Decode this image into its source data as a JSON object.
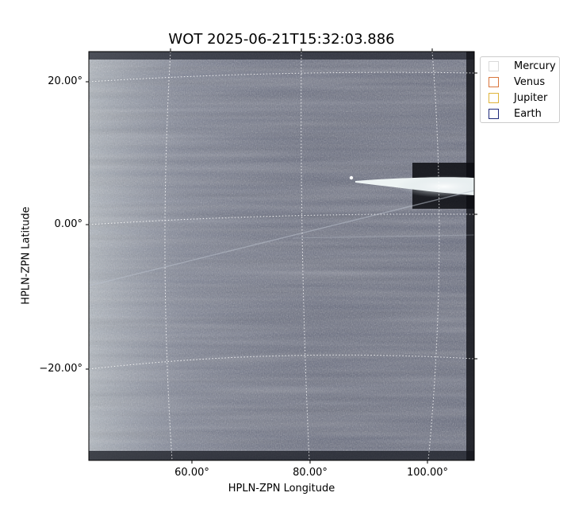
{
  "title": "WOT 2025-06-21T15:32:03.886",
  "x_axis": {
    "label": "HPLN-ZPN Longitude",
    "ticks": [
      "60.00°",
      "80.00°",
      "100.00°"
    ]
  },
  "y_axis": {
    "label": "HPLN-ZPN Latitude",
    "ticks": [
      "20.00°",
      "0.00°",
      "−20.00°"
    ]
  },
  "legend": {
    "placement": "outside-top-right",
    "items": [
      {
        "label": "Mercury",
        "color": "#d9d9d9"
      },
      {
        "label": "Venus",
        "color": "#d9753c"
      },
      {
        "label": "Jupiter",
        "color": "#e0b43a"
      },
      {
        "label": "Earth",
        "color": "#1f2a7a"
      }
    ]
  },
  "image": {
    "description_colors": {
      "background": "#5f6478",
      "highlight": "#e8f0f0"
    },
    "colormap": "bone-blue grayscale"
  },
  "grid": {
    "style": "dotted",
    "color": "#ffffff"
  }
}
